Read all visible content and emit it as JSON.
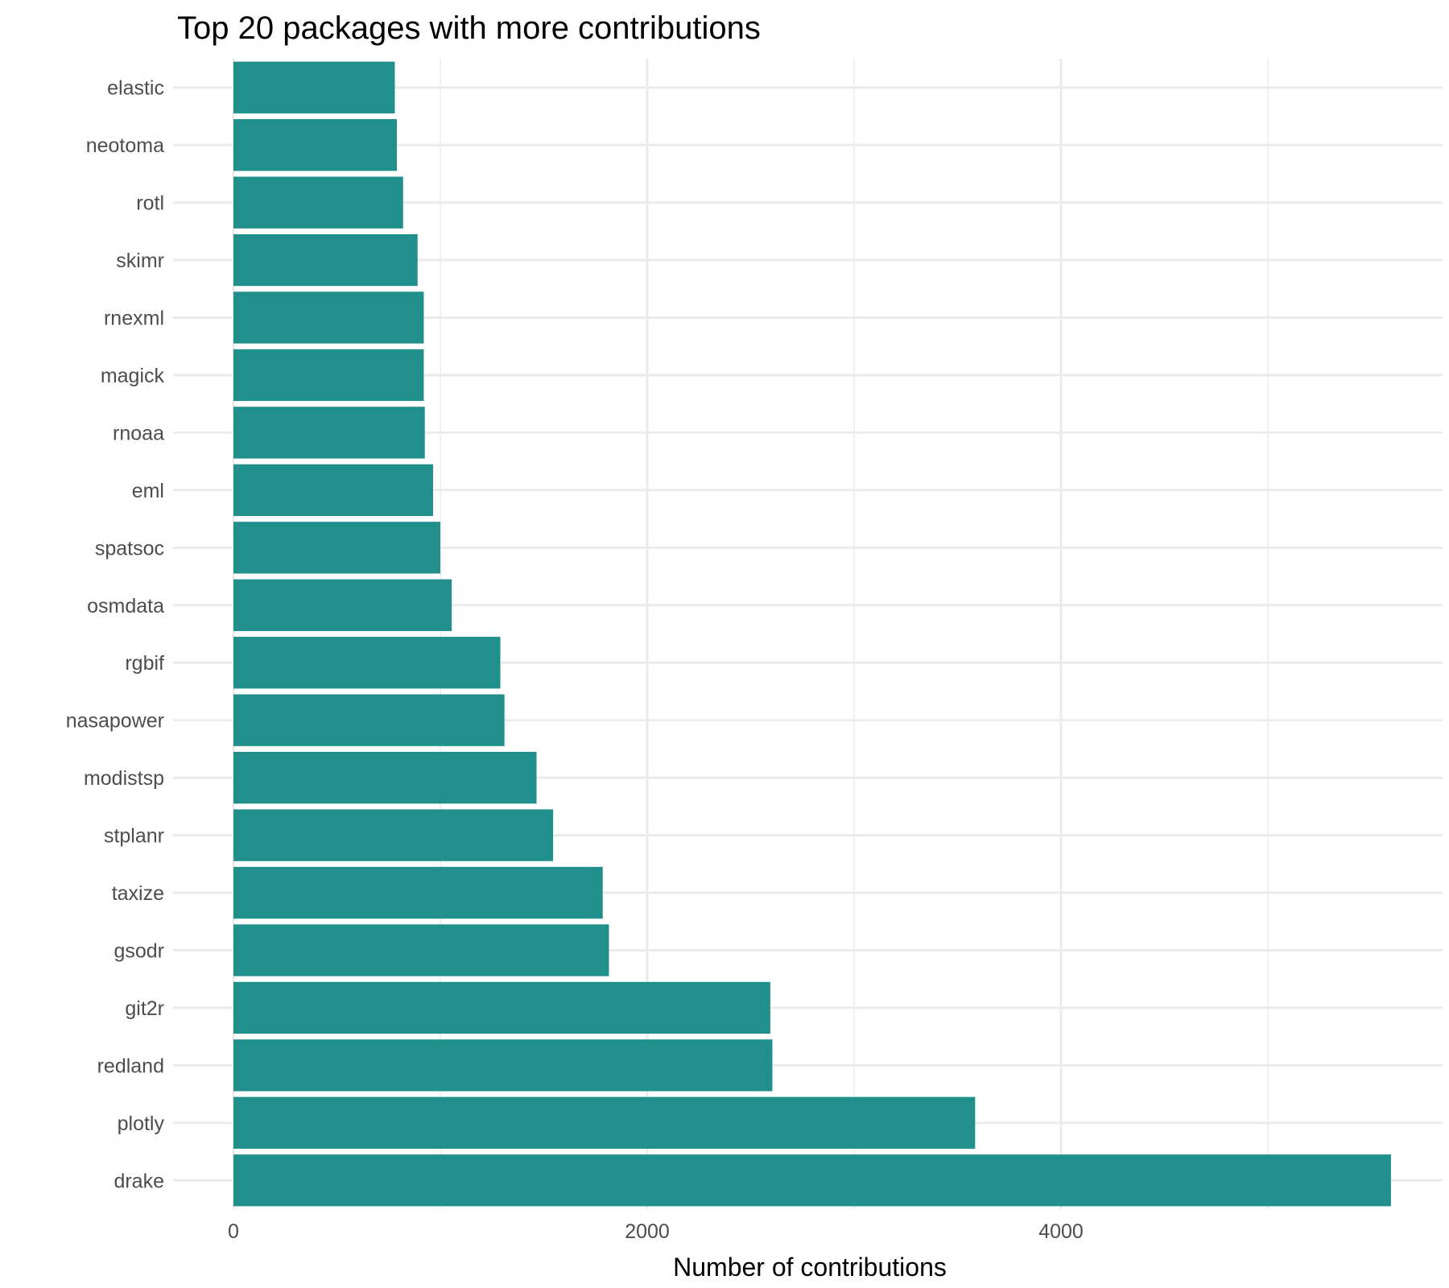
{
  "chart_data": {
    "type": "bar",
    "orientation": "horizontal",
    "title": "Top 20 packages with more contributions",
    "xlabel": "Number of contributions",
    "ylabel": "",
    "xlim": [
      0,
      5600
    ],
    "x_ticks": [
      0,
      2000,
      4000
    ],
    "x_minor_ticks": [
      1000,
      3000,
      5000
    ],
    "grid": true,
    "legend": "none",
    "bar_color": "#21908C",
    "categories": [
      "elastic",
      "neotoma",
      "rotl",
      "skimr",
      "rnexml",
      "magick",
      "rnoaa",
      "eml",
      "spatsoc",
      "osmdata",
      "rgbif",
      "nasapower",
      "modistsp",
      "stplanr",
      "taxize",
      "gsodr",
      "git2r",
      "redland",
      "plotly",
      "drake"
    ],
    "values": [
      780,
      790,
      820,
      890,
      920,
      920,
      925,
      965,
      1000,
      1055,
      1290,
      1310,
      1465,
      1545,
      1785,
      1815,
      2595,
      2605,
      3585,
      5595
    ]
  }
}
